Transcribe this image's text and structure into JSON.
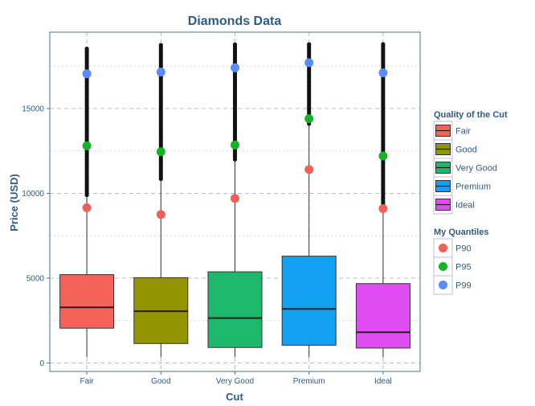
{
  "chart_data": {
    "type": "box",
    "title": "Diamonds Data",
    "xlabel": "Cut",
    "ylabel": "Price (USD)",
    "ylim": [
      -500,
      19500
    ],
    "yticks": [
      0,
      5000,
      10000,
      15000
    ],
    "grid": true,
    "legend_position": "right",
    "categories": [
      "Fair",
      "Good",
      "Very Good",
      "Premium",
      "Ideal"
    ],
    "boxes": [
      {
        "category": "Fair",
        "min": 337,
        "q1": 2050,
        "median": 3282,
        "q3": 5206,
        "whisker_high": 9900,
        "outliers_from": 9900,
        "max": 18574
      },
      {
        "category": "Good",
        "min": 327,
        "q1": 1145,
        "median": 3050,
        "q3": 5028,
        "whisker_high": 10850,
        "outliers_from": 10850,
        "max": 18788
      },
      {
        "category": "Very Good",
        "min": 336,
        "q1": 912,
        "median": 2648,
        "q3": 5373,
        "whisker_high": 12000,
        "outliers_from": 12000,
        "max": 18818
      },
      {
        "category": "Premium",
        "min": 326,
        "q1": 1046,
        "median": 3185,
        "q3": 6296,
        "whisker_high": 14100,
        "outliers_from": 14100,
        "max": 18823
      },
      {
        "category": "Ideal",
        "min": 326,
        "q1": 878,
        "median": 1810,
        "q3": 4678,
        "whisker_high": 9300,
        "outliers_from": 9300,
        "max": 18806
      }
    ],
    "quantile_series": [
      {
        "name": "P90",
        "color": "#f0605a",
        "values": [
          9150,
          8750,
          9700,
          11400,
          9100
        ]
      },
      {
        "name": "P95",
        "color": "#17b327",
        "values": [
          12800,
          12450,
          12850,
          14400,
          12200
        ]
      },
      {
        "name": "P99",
        "color": "#5a8cff",
        "values": [
          17050,
          17150,
          17400,
          17700,
          17100
        ]
      }
    ],
    "fill_legend": {
      "title": "Quality of the Cut",
      "items": [
        {
          "label": "Fair",
          "color": "#f5625a"
        },
        {
          "label": "Good",
          "color": "#939500"
        },
        {
          "label": "Very Good",
          "color": "#1db86b"
        },
        {
          "label": "Premium",
          "color": "#14a1f2"
        },
        {
          "label": "Ideal",
          "color": "#de4df2"
        }
      ]
    },
    "quantile_legend": {
      "title": "My Quantiles",
      "items": [
        {
          "label": "P90",
          "color": "#f0605a"
        },
        {
          "label": "P95",
          "color": "#17b327"
        },
        {
          "label": "P99",
          "color": "#5a8cff"
        }
      ]
    },
    "colors": {
      "panel_border": "#4f6f94",
      "grid_major": "#a9b3c9",
      "grid_minor": "#c9cfde",
      "text": "#2f5b86"
    }
  }
}
